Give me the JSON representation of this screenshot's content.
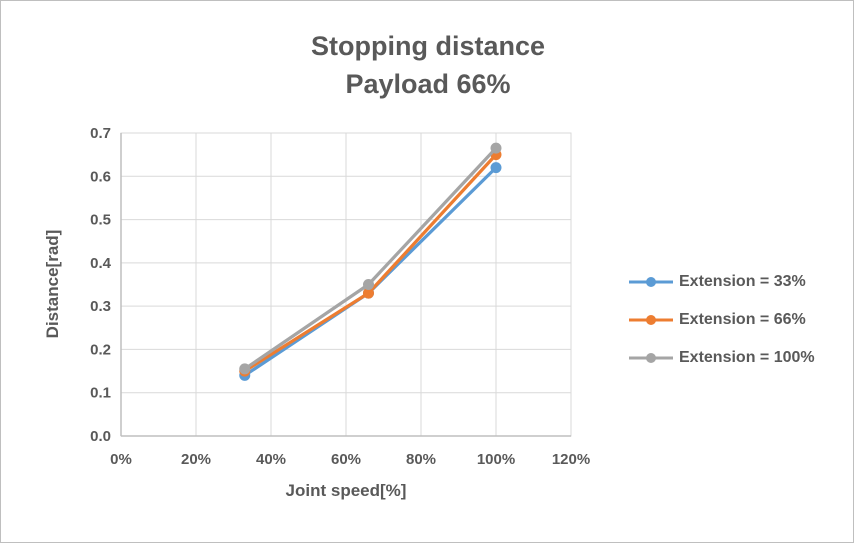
{
  "colors": {
    "text": "#595959",
    "gridline": "#d9d9d9",
    "axis_line": "#bfbfbf",
    "series_blue": "#5b9bd5",
    "series_orange": "#ed7d31",
    "series_gray": "#a5a5a5"
  },
  "chart_data": {
    "type": "line",
    "title": "Stopping distance",
    "subtitle": "Payload 66%",
    "xlabel": "Joint speed[%]",
    "ylabel": "Distance[rad]",
    "xlim": [
      0,
      120
    ],
    "ylim": [
      0.0,
      0.7
    ],
    "grid": true,
    "legend_position": "right",
    "x_ticks": [
      {
        "value": 0,
        "label": "0%"
      },
      {
        "value": 20,
        "label": "20%"
      },
      {
        "value": 40,
        "label": "40%"
      },
      {
        "value": 60,
        "label": "60%"
      },
      {
        "value": 80,
        "label": "80%"
      },
      {
        "value": 100,
        "label": "100%"
      },
      {
        "value": 120,
        "label": "120%"
      }
    ],
    "y_ticks": [
      {
        "value": 0.0,
        "label": "0.0"
      },
      {
        "value": 0.1,
        "label": "0.1"
      },
      {
        "value": 0.2,
        "label": "0.2"
      },
      {
        "value": 0.3,
        "label": "0.3"
      },
      {
        "value": 0.4,
        "label": "0.4"
      },
      {
        "value": 0.5,
        "label": "0.5"
      },
      {
        "value": 0.6,
        "label": "0.6"
      },
      {
        "value": 0.7,
        "label": "0.7"
      }
    ],
    "x": [
      33,
      66,
      100
    ],
    "series": [
      {
        "name": "Extension = 33%",
        "color": "#5b9bd5",
        "marker": "circle",
        "values": [
          0.14,
          0.33,
          0.62
        ]
      },
      {
        "name": "Extension = 66%",
        "color": "#ed7d31",
        "marker": "circle",
        "values": [
          0.15,
          0.33,
          0.65
        ]
      },
      {
        "name": "Extension = 100%",
        "color": "#a5a5a5",
        "marker": "circle",
        "values": [
          0.155,
          0.35,
          0.665
        ]
      }
    ]
  }
}
